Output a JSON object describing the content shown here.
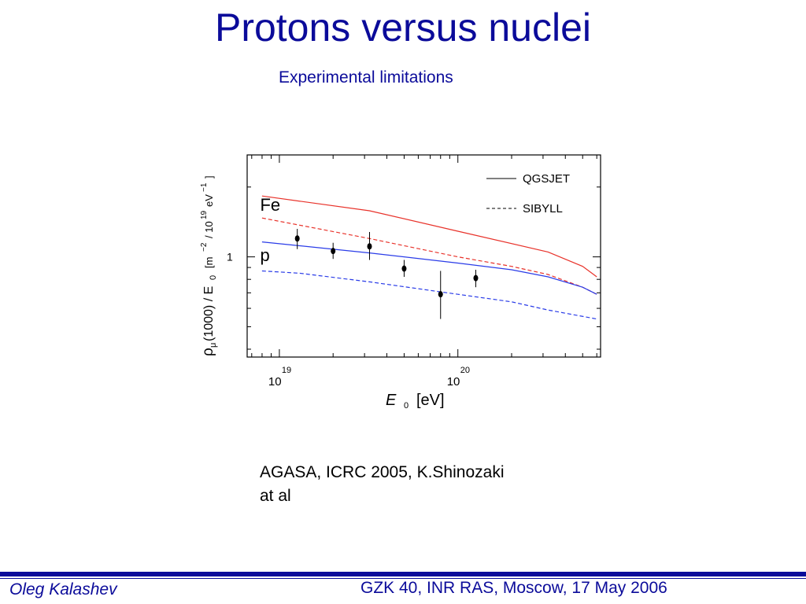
{
  "slide": {
    "title": "Protons versus nuclei",
    "subtitle": "Experimental limitations",
    "citation_line1": "AGASA, ICRC 2005, K.Shinozaki",
    "citation_line2": "at al",
    "footer_author": "Oleg Kalashev",
    "footer_event": "GZK 40, INR RAS, Moscow, 17 May 2006"
  },
  "colors": {
    "title": "#0b0b9a",
    "fe_curve": "#e8322a",
    "p_curve": "#2a3ce8",
    "data_points": "#000000"
  },
  "chart_data": {
    "type": "line",
    "x_scale": "log",
    "y_scale": "log",
    "xlim": [
      6.6e+18,
      6.3e+20
    ],
    "ylim": [
      0.37,
      2.75
    ],
    "xlabel_symbol": "E",
    "xlabel_subscript": "0",
    "xlabel_unit": "[eV]",
    "ylabel_rho": "ρ",
    "ylabel_mu": "μ",
    "ylabel_mid": "(1000) / E",
    "ylabel_sub": "0",
    "ylabel_unit_open": "[m",
    "ylabel_exp1": "−2",
    "ylabel_mid2": "/ 10",
    "ylabel_exp2": "19",
    "ylabel_ev": "eV",
    "ylabel_exp3": "−1",
    "ylabel_close": "]",
    "x_ticks": [
      {
        "value": 1e+19,
        "base": "10",
        "exp": "19"
      },
      {
        "value": 1e+20,
        "base": "10",
        "exp": "20"
      }
    ],
    "y_ticks": [
      {
        "value": 1,
        "label": "1"
      }
    ],
    "legend_placement": "top-right",
    "legend": [
      {
        "label": "QGSJET",
        "style": "solid"
      },
      {
        "label": "SIBYLL",
        "style": "dashed"
      }
    ],
    "curve_labels": [
      {
        "text": "Fe",
        "x": 7.8e+18,
        "y": 1.68
      },
      {
        "text": "p",
        "x": 7.8e+18,
        "y": 1.02
      }
    ],
    "series": [
      {
        "style": "solid",
        "colorKey": "fe_curve",
        "x": [
          8e+18,
          3.2e+19,
          1e+20,
          3.2e+20,
          5e+20,
          6e+20
        ],
        "y": [
          1.83,
          1.58,
          1.29,
          1.05,
          0.91,
          0.82
        ]
      },
      {
        "style": "dashed",
        "colorKey": "fe_curve",
        "x": [
          8e+18,
          3.2e+19,
          1e+20,
          2e+20,
          3.2e+20,
          5e+20,
          6e+20
        ],
        "y": [
          1.47,
          1.2,
          1.0,
          0.91,
          0.84,
          0.74,
          0.69
        ]
      },
      {
        "style": "solid",
        "colorKey": "p_curve",
        "x": [
          8e+18,
          3.2e+19,
          1e+20,
          2e+20,
          3.2e+20,
          5e+20,
          6e+20
        ],
        "y": [
          1.16,
          1.04,
          0.94,
          0.88,
          0.82,
          0.74,
          0.69
        ]
      },
      {
        "style": "dashed",
        "colorKey": "p_curve",
        "x": [
          8e+18,
          1.3e+19,
          3.2e+19,
          1e+20,
          2e+20,
          3.2e+20,
          6e+20
        ],
        "y": [
          0.87,
          0.85,
          0.78,
          0.69,
          0.64,
          0.59,
          0.54
        ]
      }
    ],
    "points": [
      {
        "x": 1.26e+19,
        "y": 1.2,
        "ylow": 1.08,
        "yhigh": 1.32
      },
      {
        "x": 2e+19,
        "y": 1.06,
        "ylow": 0.98,
        "yhigh": 1.15
      },
      {
        "x": 3.2e+19,
        "y": 1.11,
        "ylow": 0.97,
        "yhigh": 1.28
      },
      {
        "x": 5e+19,
        "y": 0.89,
        "ylow": 0.82,
        "yhigh": 0.97
      },
      {
        "x": 8e+19,
        "y": 0.69,
        "ylow": 0.54,
        "yhigh": 0.87
      },
      {
        "x": 1.26e+20,
        "y": 0.81,
        "ylow": 0.74,
        "yhigh": 0.88
      }
    ]
  }
}
